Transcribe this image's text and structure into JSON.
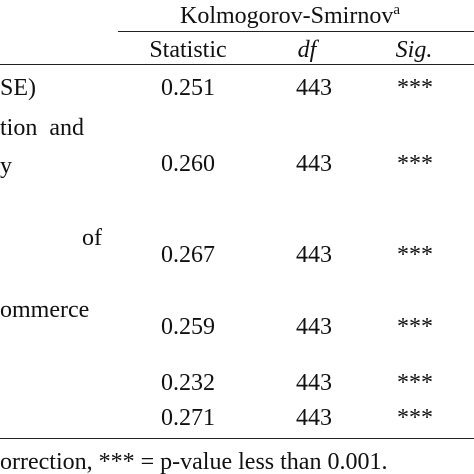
{
  "table": {
    "group_header": {
      "text": "Kolmogorov-Smirnov",
      "superscript": "a"
    },
    "columns": [
      "Statistic",
      "df",
      "Sig."
    ],
    "rows": [
      {
        "label": [
          "SE)"
        ],
        "cells": [
          "0.251",
          "443",
          "***"
        ]
      },
      {
        "label": [
          "tion  and",
          "y"
        ],
        "cells": [
          "0.260",
          "443",
          "***"
        ]
      },
      {
        "label": [
          "of"
        ],
        "cells": [
          "0.267",
          "443",
          "***"
        ]
      },
      {
        "label": [
          "ommerce"
        ],
        "cells": [
          "0.259",
          "443",
          "***"
        ]
      },
      {
        "cells": [
          "0.232",
          "443",
          "***"
        ]
      },
      {
        "cells": [
          "0.271",
          "443",
          "***"
        ]
      }
    ],
    "footnote": "orrection, *** = p-value less than 0.001."
  }
}
